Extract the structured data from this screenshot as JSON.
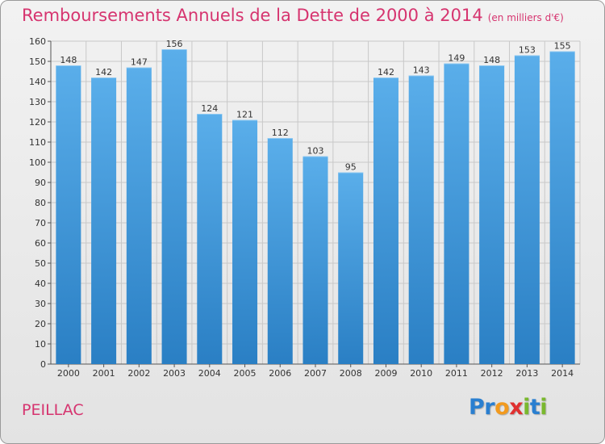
{
  "header": {
    "title": "Remboursements Annuels de la Dette de 2000 à 2014",
    "unit": "(en milliers d'€)"
  },
  "footer": {
    "commune": "PEILLAC",
    "logo_letters": [
      {
        "ch": "P",
        "color": "#2a7fd0"
      },
      {
        "ch": "r",
        "color": "#2a7fd0"
      },
      {
        "ch": "o",
        "color": "#f29a1e"
      },
      {
        "ch": "x",
        "color": "#e03030"
      },
      {
        "ch": "i",
        "color": "#7ab82e"
      },
      {
        "ch": "t",
        "color": "#2a7fd0"
      },
      {
        "ch": "i",
        "color": "#7ab82e"
      }
    ]
  },
  "colors": {
    "title": "#d6346f",
    "bar_top": "#5aaeea",
    "bar_bottom": "#2a7fc4",
    "grid": "#c8c8c8",
    "axis": "#555555"
  },
  "chart_data": {
    "type": "bar",
    "title": "Remboursements Annuels de la Dette de 2000 à 2014",
    "subtitle": "(en milliers d'€)",
    "categories": [
      "2000",
      "2001",
      "2002",
      "2003",
      "2004",
      "2005",
      "2006",
      "2007",
      "2008",
      "2009",
      "2010",
      "2011",
      "2012",
      "2013",
      "2014"
    ],
    "values": [
      148,
      142,
      147,
      156,
      124,
      121,
      112,
      103,
      95,
      142,
      143,
      149,
      148,
      153,
      155
    ],
    "ylim": [
      0,
      160
    ],
    "ytick_step": 10,
    "grid": true,
    "legend": "none"
  }
}
